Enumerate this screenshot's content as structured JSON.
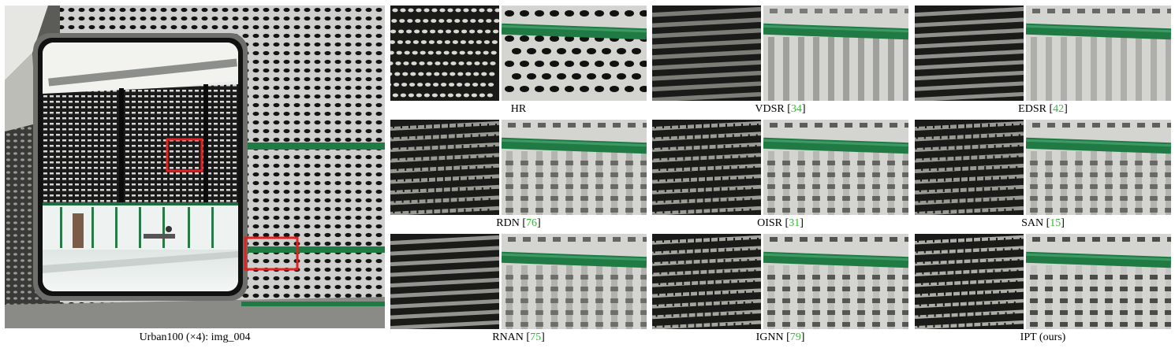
{
  "figure": {
    "main_caption": "Urban100 (×4): img_004",
    "colors": {
      "highlight_box": "#e62020",
      "ref_green": "#2fbf2f",
      "rail_green": "#1f7a44",
      "ceiling": "#c9c9c7",
      "hole_dark": "#121212"
    },
    "methods": [
      {
        "name": "HR",
        "ref": ""
      },
      {
        "name": "VDSR",
        "ref": "34"
      },
      {
        "name": "EDSR",
        "ref": "42"
      },
      {
        "name": "RDN",
        "ref": "76"
      },
      {
        "name": "OISR",
        "ref": "31"
      },
      {
        "name": "SAN",
        "ref": "15"
      },
      {
        "name": "RNAN ",
        "ref": "75"
      },
      {
        "name": "IGNN",
        "ref": "79"
      },
      {
        "name": "IPT (ours)",
        "ref": ""
      }
    ]
  }
}
